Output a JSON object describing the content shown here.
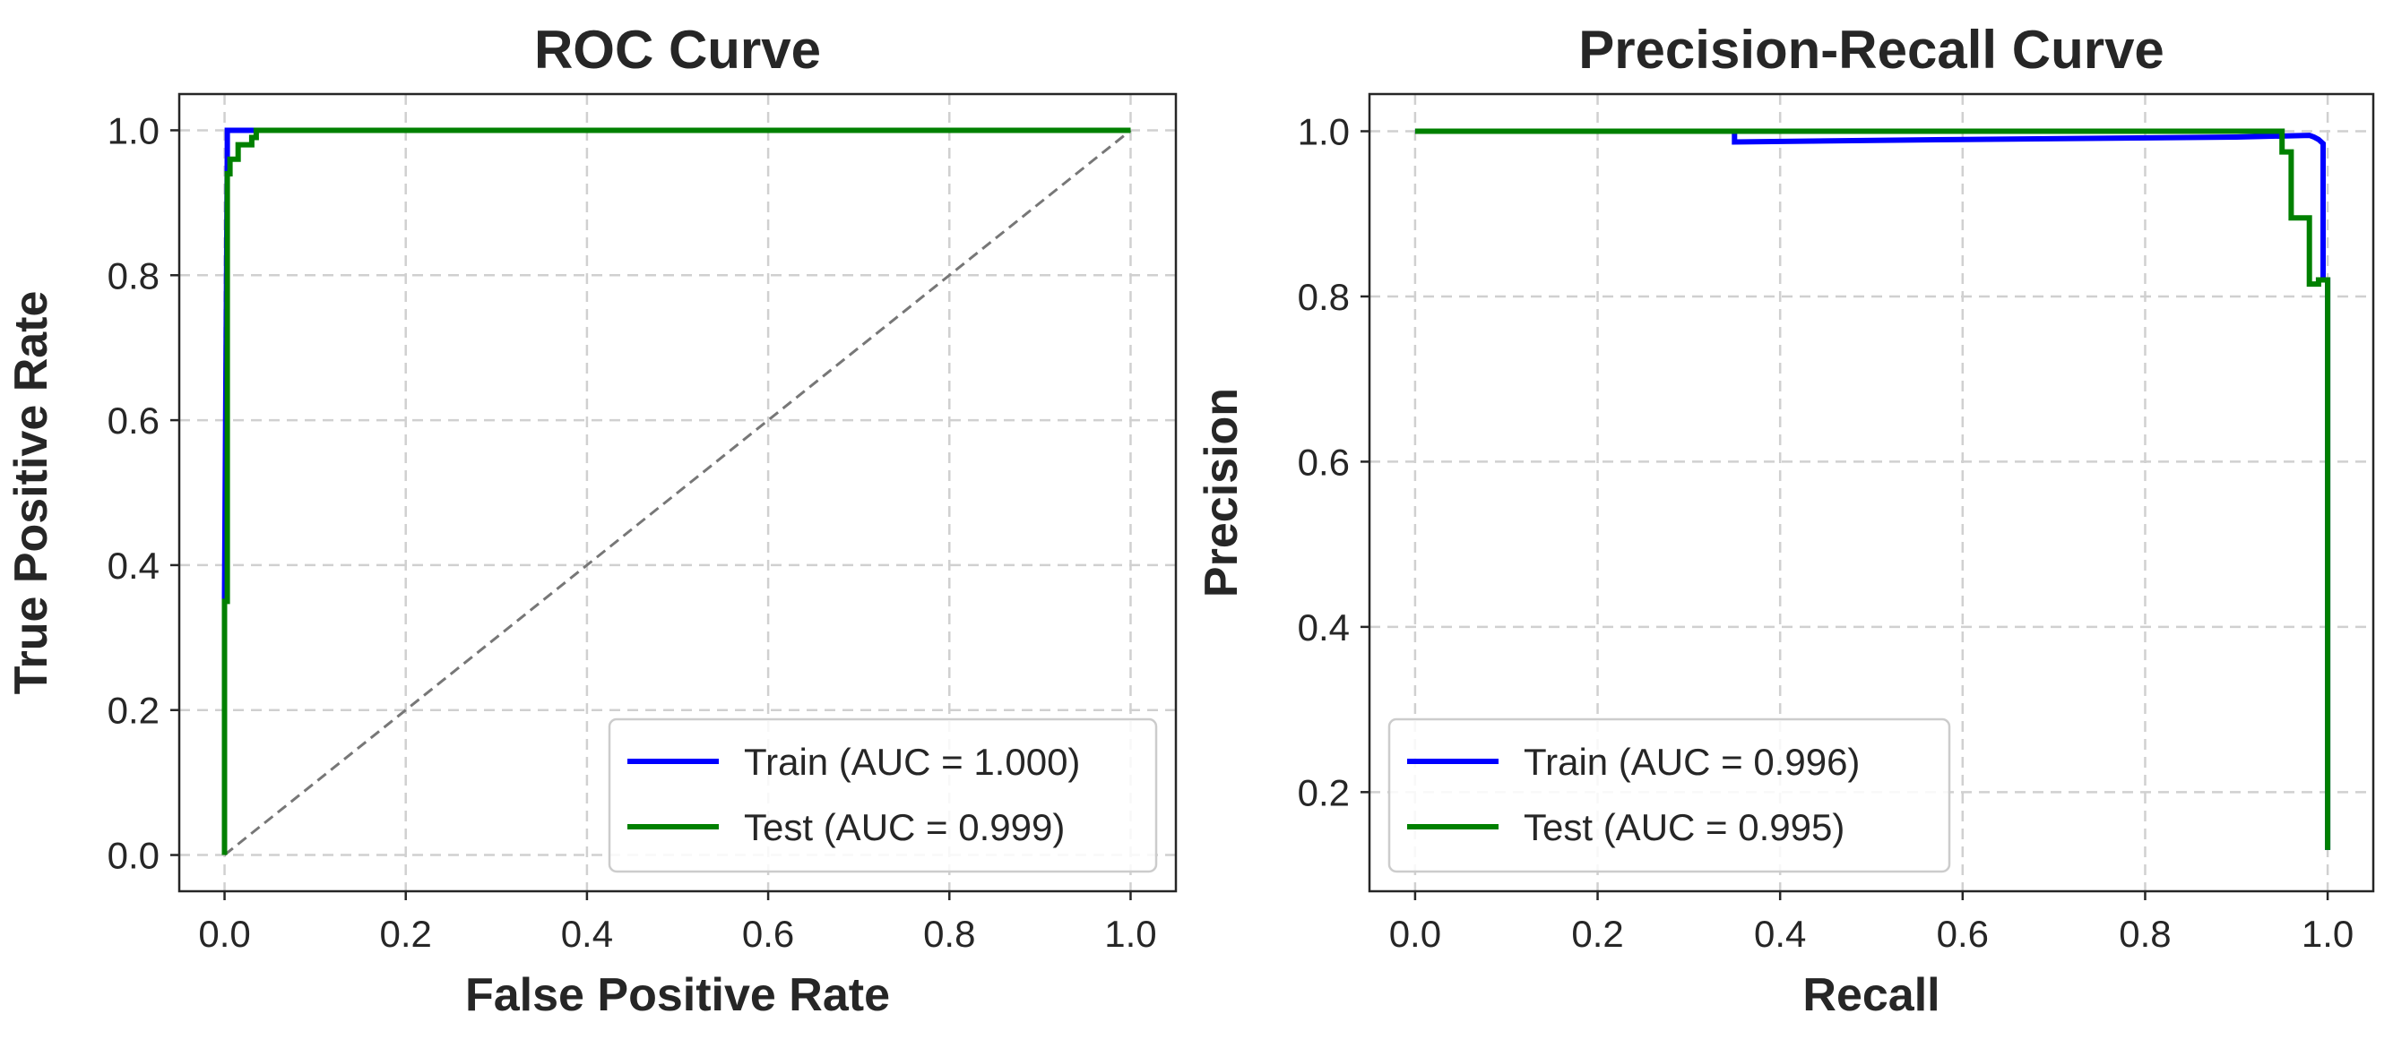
{
  "chart_data": [
    {
      "type": "line",
      "title": "ROC Curve",
      "xlabel": "False Positive Rate",
      "ylabel": "True Positive Rate",
      "xlim": [
        -0.05,
        1.05
      ],
      "ylim": [
        -0.05,
        1.05
      ],
      "xticks": [
        0.0,
        0.2,
        0.4,
        0.6,
        0.8,
        1.0
      ],
      "yticks": [
        0.0,
        0.2,
        0.4,
        0.6,
        0.8,
        1.0
      ],
      "xtick_labels": [
        "0.0",
        "0.2",
        "0.4",
        "0.6",
        "0.8",
        "1.0"
      ],
      "ytick_labels": [
        "0.0",
        "0.2",
        "0.4",
        "0.6",
        "0.8",
        "1.0"
      ],
      "grid": true,
      "legend_position": "lower-right",
      "series": [
        {
          "name": "Train (AUC = 1.000)",
          "color": "#0000ff",
          "x": [
            0.0,
            0.0,
            0.003,
            0.003,
            0.03,
            1.0
          ],
          "y": [
            0.0,
            0.35,
            0.97,
            1.0,
            1.0,
            1.0
          ]
        },
        {
          "name": "Test  (AUC = 0.999)",
          "color": "#008000",
          "x": [
            0.0,
            0.0,
            0.003,
            0.003,
            0.006,
            0.006,
            0.015,
            0.015,
            0.03,
            0.03,
            0.035,
            0.035,
            1.0
          ],
          "y": [
            0.0,
            0.35,
            0.35,
            0.94,
            0.94,
            0.96,
            0.96,
            0.98,
            0.98,
            0.99,
            0.99,
            1.0,
            1.0
          ]
        },
        {
          "name": "",
          "color": "#777777",
          "dashed": true,
          "x": [
            0.0,
            1.0
          ],
          "y": [
            0.0,
            1.0
          ]
        }
      ]
    },
    {
      "type": "line",
      "title": "Precision-Recall Curve",
      "xlabel": "Recall",
      "ylabel": "Precision",
      "xlim": [
        -0.05,
        1.05
      ],
      "ylim": [
        0.08,
        1.045
      ],
      "xticks": [
        0.0,
        0.2,
        0.4,
        0.6,
        0.8,
        1.0
      ],
      "yticks": [
        0.2,
        0.4,
        0.6,
        0.8,
        1.0
      ],
      "xtick_labels": [
        "0.0",
        "0.2",
        "0.4",
        "0.6",
        "0.8",
        "1.0"
      ],
      "ytick_labels": [
        "0.2",
        "0.4",
        "0.6",
        "0.8",
        "1.0"
      ],
      "grid": true,
      "legend_position": "lower-left",
      "series": [
        {
          "name": "Train (AUC = 0.996)",
          "color": "#0000ff",
          "x": [
            0.0,
            0.35,
            0.35,
            0.6,
            0.9,
            0.98,
            0.985,
            0.99,
            0.995,
            0.995,
            1.0,
            1.0
          ],
          "y": [
            1.0,
            1.0,
            0.987,
            0.99,
            0.993,
            0.995,
            0.993,
            0.99,
            0.985,
            0.82,
            0.82,
            0.13
          ]
        },
        {
          "name": "Test  (AUC = 0.995)",
          "color": "#008000",
          "x": [
            0.0,
            0.95,
            0.95,
            0.96,
            0.96,
            0.98,
            0.98,
            0.99,
            0.99,
            1.0,
            1.0
          ],
          "y": [
            1.0,
            1.0,
            0.975,
            0.975,
            0.895,
            0.895,
            0.815,
            0.815,
            0.82,
            0.82,
            0.13
          ]
        }
      ]
    }
  ]
}
